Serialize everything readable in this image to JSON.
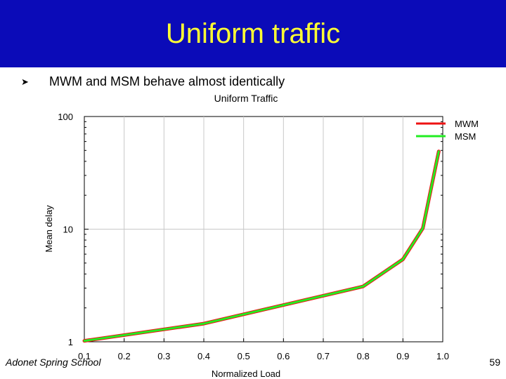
{
  "slide": {
    "title": "Uniform traffic",
    "bullet": "MWM and MSM behave almost identically",
    "bullet_icon": "arrowhead-bullet-icon",
    "footer_left": "Adonet Spring School",
    "page_number": "59",
    "colors": {
      "title_bg": "#0b0bb8",
      "title_text": "#ffff33"
    }
  },
  "chart_data": {
    "type": "line",
    "title": "Uniform Traffic",
    "xlabel": "Normalized Load",
    "ylabel": "Mean delay",
    "y_scale": "log",
    "xlim": [
      0.1,
      1.0
    ],
    "ylim": [
      1,
      100
    ],
    "x_ticks": [
      "0.1",
      "0.2",
      "0.3",
      "0.4",
      "0.5",
      "0.6",
      "0.7",
      "0.8",
      "0.9",
      "1.0"
    ],
    "y_ticks": [
      "1",
      "10",
      "100"
    ],
    "grid": true,
    "legend_position": "top-right",
    "x": [
      0.1,
      0.4,
      0.8,
      0.9,
      0.95,
      0.99
    ],
    "series": [
      {
        "name": "MWM",
        "color": "#ee1111",
        "values": [
          1.02,
          1.45,
          3.1,
          5.4,
          10.2,
          49
        ]
      },
      {
        "name": "MSM",
        "color": "#22ee22",
        "values": [
          1.02,
          1.45,
          3.1,
          5.4,
          10.2,
          49
        ]
      }
    ]
  }
}
